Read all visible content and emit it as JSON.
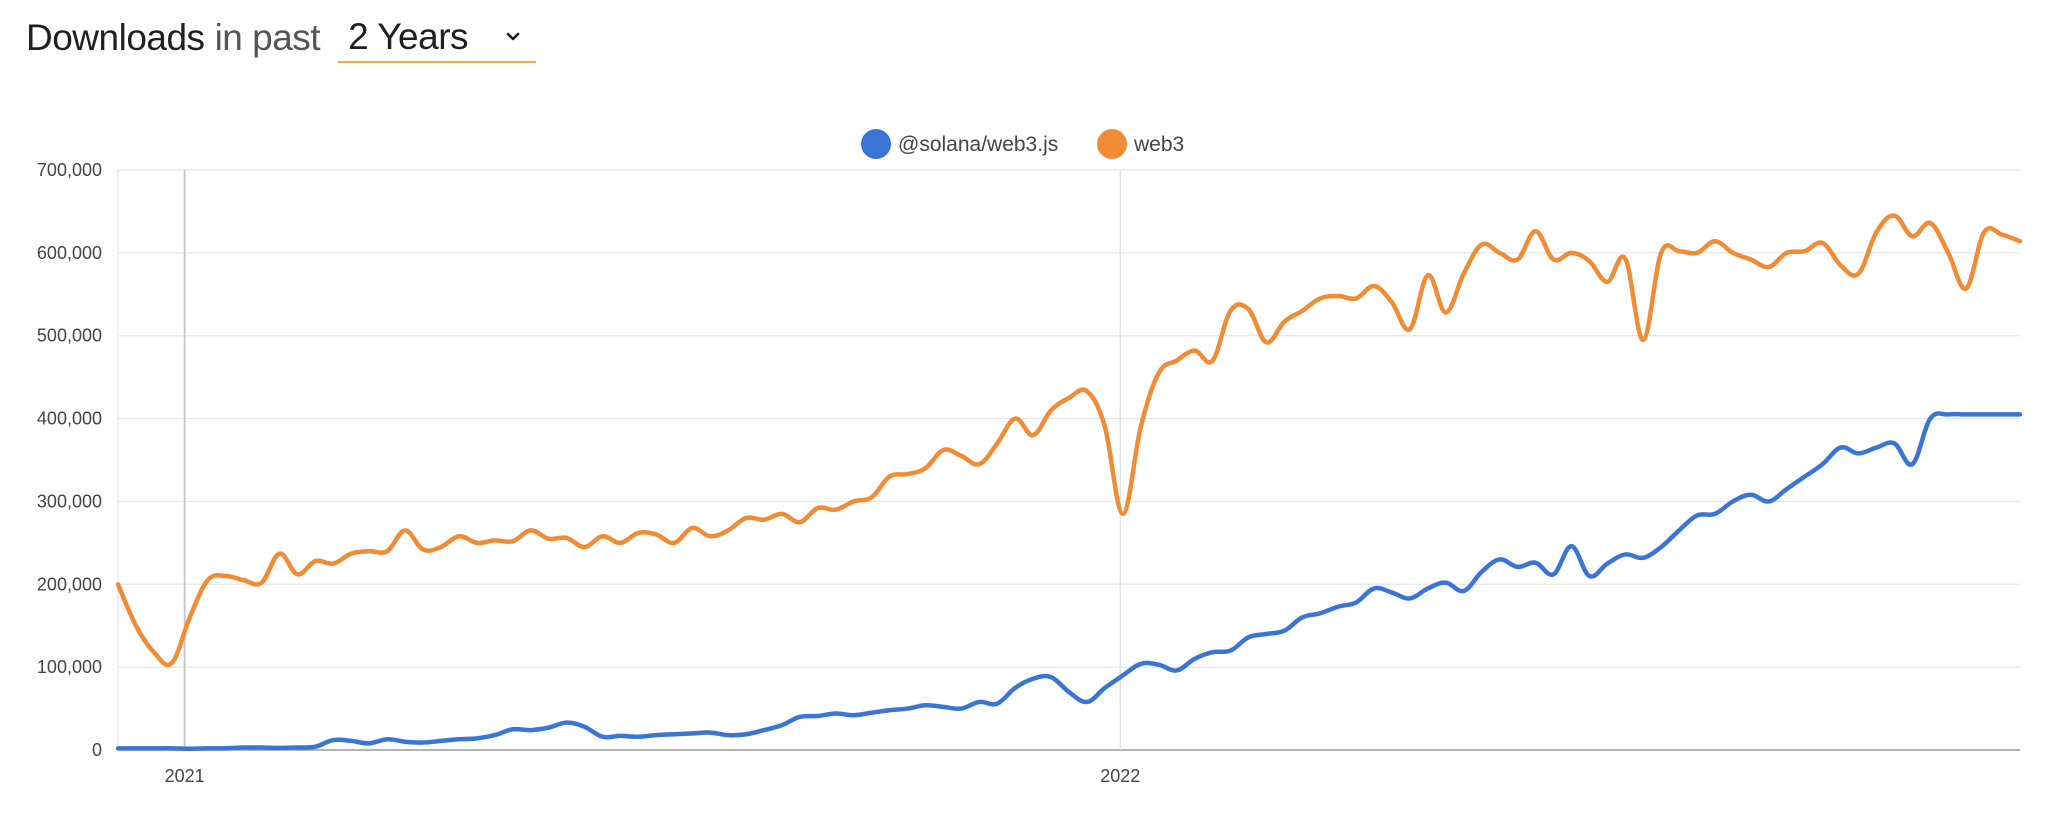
{
  "header": {
    "title": "Downloads",
    "subtitle": "in past",
    "range_select": {
      "value": "2 Years"
    }
  },
  "colors": {
    "solana": "#3a75d6",
    "web3": "#f08c36",
    "accent_underline": "#f0a848"
  },
  "chart_data": {
    "type": "line",
    "xlabel": "",
    "ylabel": "",
    "ylim": [
      0,
      700000
    ],
    "y_ticks": [
      "700,000",
      "600,000",
      "500,000",
      "400,000",
      "300,000",
      "200,000",
      "100,000",
      "0"
    ],
    "y_tick_values": [
      700000,
      600000,
      500000,
      400000,
      300000,
      200000,
      100000,
      0
    ],
    "x_ticks": [
      "2021",
      "2022"
    ],
    "x_tick_dates": [
      "2021-01-01",
      "2022-01-01"
    ],
    "xlim": [
      "2020-12-06",
      "2022-12-18"
    ],
    "legend_position": "top-center",
    "grid": true,
    "x": [
      "2020-12-06",
      "2020-12-13",
      "2020-12-20",
      "2020-12-27",
      "2021-01-03",
      "2021-01-10",
      "2021-01-17",
      "2021-01-24",
      "2021-01-31",
      "2021-02-07",
      "2021-02-14",
      "2021-02-21",
      "2021-02-28",
      "2021-03-07",
      "2021-03-14",
      "2021-03-21",
      "2021-03-28",
      "2021-04-04",
      "2021-04-11",
      "2021-04-18",
      "2021-04-25",
      "2021-05-02",
      "2021-05-09",
      "2021-05-16",
      "2021-05-23",
      "2021-05-30",
      "2021-06-06",
      "2021-06-13",
      "2021-06-20",
      "2021-06-27",
      "2021-07-04",
      "2021-07-11",
      "2021-07-18",
      "2021-07-25",
      "2021-08-01",
      "2021-08-08",
      "2021-08-15",
      "2021-08-22",
      "2021-08-29",
      "2021-09-05",
      "2021-09-12",
      "2021-09-19",
      "2021-09-26",
      "2021-10-03",
      "2021-10-10",
      "2021-10-17",
      "2021-10-24",
      "2021-10-31",
      "2021-11-07",
      "2021-11-14",
      "2021-11-21",
      "2021-11-28",
      "2021-12-05",
      "2021-12-12",
      "2021-12-19",
      "2021-12-26",
      "2022-01-02",
      "2022-01-09",
      "2022-01-16",
      "2022-01-23",
      "2022-01-30",
      "2022-02-06",
      "2022-02-13",
      "2022-02-20",
      "2022-02-27",
      "2022-03-06",
      "2022-03-13",
      "2022-03-20",
      "2022-03-27",
      "2022-04-03",
      "2022-04-10",
      "2022-04-17",
      "2022-04-24",
      "2022-05-01",
      "2022-05-08",
      "2022-05-15",
      "2022-05-22",
      "2022-05-29",
      "2022-06-05",
      "2022-06-12",
      "2022-06-19",
      "2022-06-26",
      "2022-07-03",
      "2022-07-10",
      "2022-07-17",
      "2022-07-24",
      "2022-07-31",
      "2022-08-07",
      "2022-08-14",
      "2022-08-21",
      "2022-08-28",
      "2022-09-04",
      "2022-09-11",
      "2022-09-18",
      "2022-09-25",
      "2022-10-02",
      "2022-10-09",
      "2022-10-16",
      "2022-10-23",
      "2022-10-30",
      "2022-11-06",
      "2022-11-13",
      "2022-11-20",
      "2022-11-27",
      "2022-12-04",
      "2022-12-11",
      "2022-12-18"
    ],
    "series": [
      {
        "name": "@solana/web3.js",
        "color": "#3a75d6",
        "values": [
          2000,
          2000,
          2000,
          2000,
          1500,
          2000,
          2000,
          3000,
          3000,
          2500,
          3000,
          4000,
          12000,
          11000,
          8000,
          13000,
          10000,
          9000,
          11000,
          13000,
          14000,
          18000,
          25000,
          24000,
          27000,
          33000,
          28000,
          16000,
          17000,
          16000,
          18000,
          19000,
          20000,
          21000,
          18000,
          19000,
          24000,
          30000,
          40000,
          41000,
          44000,
          42000,
          45000,
          48000,
          50000,
          54000,
          52000,
          50000,
          58000,
          56000,
          75000,
          86000,
          88000,
          70000,
          58000,
          75000,
          90000,
          104000,
          103000,
          96000,
          110000,
          118000,
          120000,
          136000,
          140000,
          144000,
          160000,
          165000,
          173000,
          178000,
          195000,
          190000,
          183000,
          195000,
          202000,
          192000,
          215000,
          230000,
          221000,
          226000,
          212000,
          246000,
          210000,
          225000,
          236000,
          232000,
          245000,
          265000,
          283000,
          285000,
          300000,
          308000,
          300000,
          315000,
          330000,
          345000,
          365000,
          358000,
          365000,
          370000,
          345000,
          400000,
          405000,
          405000,
          405000,
          405000,
          405000
        ],
        "x_trim_end_note": ""
      },
      {
        "name": "web3",
        "color": "#f08c36",
        "values": [
          200000,
          150000,
          118000,
          105000,
          160000,
          205000,
          210000,
          205000,
          202000,
          237000,
          212000,
          228000,
          225000,
          237000,
          240000,
          240000,
          265000,
          242000,
          245000,
          258000,
          250000,
          253000,
          252000,
          265000,
          255000,
          256000,
          245000,
          258000,
          250000,
          262000,
          260000,
          250000,
          268000,
          258000,
          265000,
          280000,
          278000,
          285000,
          275000,
          292000,
          290000,
          300000,
          305000,
          330000,
          333000,
          340000,
          362000,
          355000,
          345000,
          370000,
          400000,
          380000,
          410000,
          425000,
          433000,
          390000,
          285000,
          390000,
          455000,
          470000,
          482000,
          470000,
          530000,
          532000,
          492000,
          517000,
          530000,
          545000,
          548000,
          545000,
          560000,
          540000,
          508000,
          573000,
          528000,
          575000,
          610000,
          600000,
          592000,
          626000,
          592000,
          600000,
          590000,
          565000,
          593000,
          495000,
          600000,
          602000,
          600000,
          614000,
          600000,
          592000,
          583000,
          600000,
          602000,
          612000,
          585000,
          575000,
          625000,
          645000,
          620000,
          636000,
          600000,
          557000,
          625000,
          622000,
          614000
        ]
      }
    ]
  }
}
